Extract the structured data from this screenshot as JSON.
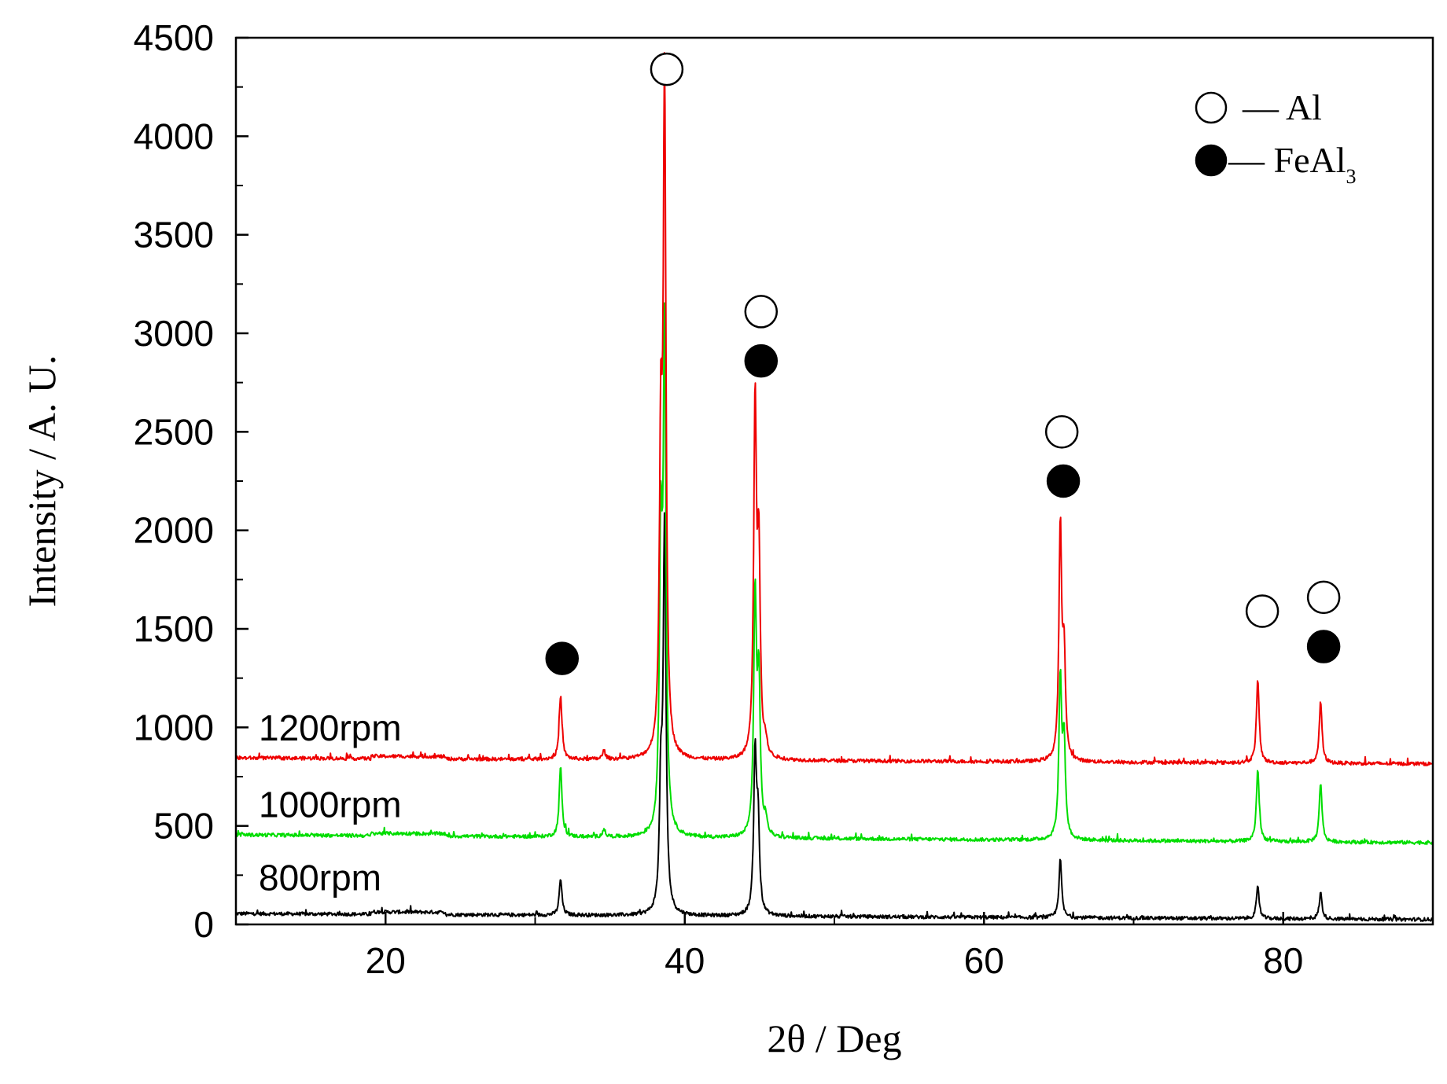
{
  "chart_data": {
    "type": "line",
    "title": "",
    "xlabel": "2θ / Deg",
    "ylabel": "Intensity / A. U.",
    "xlim": [
      10,
      90
    ],
    "ylim": [
      0,
      4500
    ],
    "x_ticks": [
      20,
      40,
      60,
      80
    ],
    "y_ticks": [
      0,
      500,
      1000,
      1500,
      2000,
      2500,
      3000,
      3500,
      4000,
      4500
    ],
    "grid": false,
    "baseline_noise": 18,
    "series": [
      {
        "name": "800rpm",
        "color": "#000000",
        "baseline": [
          [
            10,
            55
          ],
          [
            90,
            25
          ]
        ],
        "label_at": [
          11,
          230
        ],
        "peaks": [
          [
            31.7,
            230
          ],
          [
            38.4,
            640
          ],
          [
            38.65,
            2000
          ],
          [
            44.7,
            850
          ],
          [
            44.9,
            480
          ],
          [
            65.1,
            330
          ],
          [
            78.3,
            190
          ],
          [
            82.5,
            160
          ]
        ]
      },
      {
        "name": "1000rpm",
        "color": "#00dd00",
        "baseline": [
          [
            10,
            455
          ],
          [
            90,
            415
          ]
        ],
        "label_at": [
          11,
          600
        ],
        "peaks": [
          [
            31.7,
            800
          ],
          [
            34.6,
            480
          ],
          [
            38.4,
            1850
          ],
          [
            38.65,
            2930
          ],
          [
            44.7,
            1650
          ],
          [
            44.95,
            1200
          ],
          [
            45.4,
            520
          ],
          [
            65.1,
            1240
          ],
          [
            65.35,
            900
          ],
          [
            78.3,
            790
          ],
          [
            82.5,
            720
          ]
        ]
      },
      {
        "name": "1200rpm",
        "color": "#ee0000",
        "baseline": [
          [
            10,
            845
          ],
          [
            90,
            815
          ]
        ],
        "label_at": [
          11,
          990
        ],
        "peaks": [
          [
            31.7,
            1160
          ],
          [
            34.6,
            880
          ],
          [
            38.4,
            2320
          ],
          [
            38.65,
            4200
          ],
          [
            44.7,
            2620
          ],
          [
            44.95,
            1820
          ],
          [
            45.4,
            900
          ],
          [
            65.1,
            2000
          ],
          [
            65.35,
            1330
          ],
          [
            78.3,
            1240
          ],
          [
            82.5,
            1130
          ]
        ]
      }
    ],
    "markers": [
      {
        "phase": "Al",
        "style": "open",
        "x": 38.8,
        "y": 4340
      },
      {
        "phase": "Al",
        "style": "open",
        "x": 45.1,
        "y": 3110
      },
      {
        "phase": "FeAl3",
        "style": "filled",
        "x": 45.1,
        "y": 2860
      },
      {
        "phase": "Al",
        "style": "open",
        "x": 65.2,
        "y": 2500
      },
      {
        "phase": "FeAl3",
        "style": "filled",
        "x": 65.3,
        "y": 2250
      },
      {
        "phase": "FeAl3",
        "style": "filled",
        "x": 31.8,
        "y": 1350
      },
      {
        "phase": "Al",
        "style": "open",
        "x": 78.6,
        "y": 1590
      },
      {
        "phase": "Al",
        "style": "open",
        "x": 82.7,
        "y": 1660
      },
      {
        "phase": "FeAl3",
        "style": "filled",
        "x": 82.7,
        "y": 1410
      }
    ],
    "legend": {
      "placement": "top-right",
      "entries": [
        {
          "style": "open",
          "label": "— Al"
        },
        {
          "style": "filled",
          "label": "— FeAl",
          "subscript": "3"
        }
      ]
    }
  }
}
